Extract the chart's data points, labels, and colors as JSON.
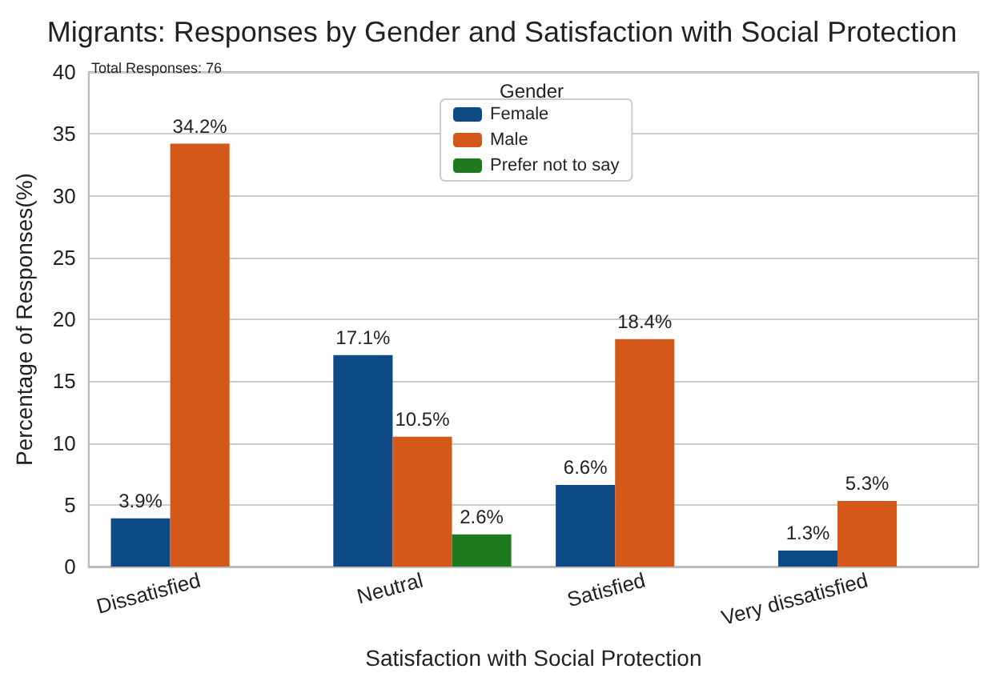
{
  "chart_data": {
    "type": "bar",
    "title": "Migrants: Responses by Gender and Satisfaction with Social Protection",
    "xlabel": "Satisfaction with Social Protection",
    "ylabel": "Percentage of Responses(%)",
    "legend_title": "Gender",
    "annotations": [
      "Total Responses: 76"
    ],
    "categories": [
      "Dissatisfied",
      "Neutral",
      "Satisfied",
      "Very dissatisfied"
    ],
    "series": [
      {
        "name": "Female",
        "color": "#0e4a86",
        "values": [
          3.9,
          17.1,
          6.6,
          1.3
        ],
        "value_labels": [
          "3.9%",
          "17.1%",
          "6.6%",
          "1.3%"
        ]
      },
      {
        "name": "Male",
        "color": "#d4581a",
        "values": [
          34.2,
          10.5,
          18.4,
          5.3
        ],
        "value_labels": [
          "34.2%",
          "10.5%",
          "18.4%",
          "5.3%"
        ]
      },
      {
        "name": "Prefer not to say",
        "color": "#1e7a1e",
        "values": [
          null,
          2.6,
          null,
          null
        ],
        "value_labels": [
          null,
          "2.6%",
          null,
          null
        ]
      }
    ],
    "ylim": [
      0,
      40
    ],
    "yticks": [
      0,
      5,
      10,
      15,
      20,
      25,
      30,
      35,
      40
    ],
    "grid": "y",
    "legend": "top"
  }
}
